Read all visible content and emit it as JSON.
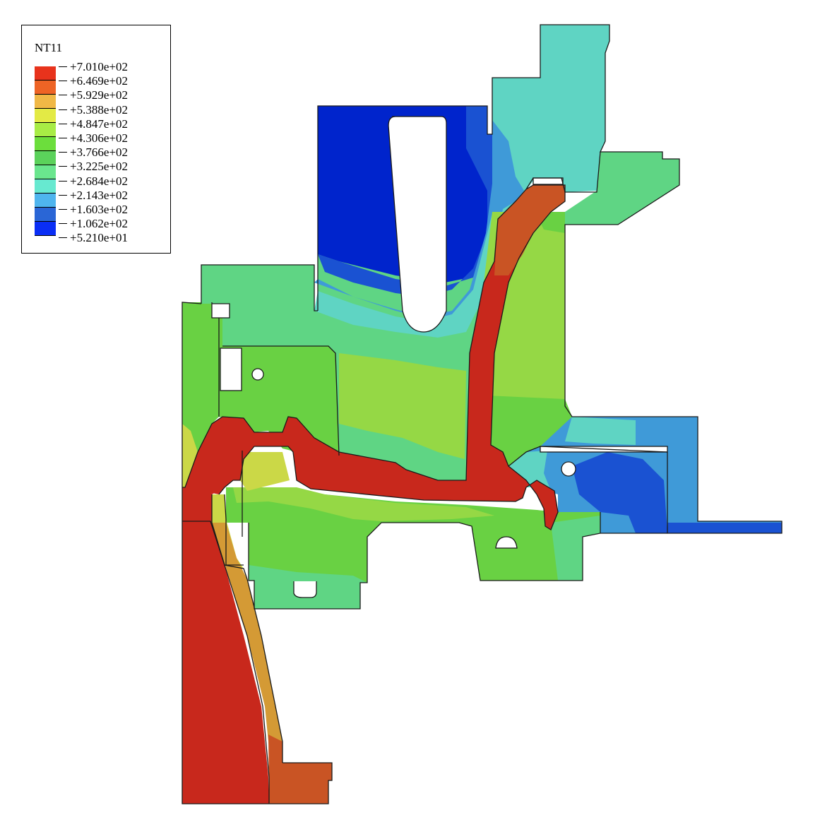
{
  "legend": {
    "title": "NT11",
    "labels": [
      "+7.010e+02",
      "+6.469e+02",
      "+5.929e+02",
      "+5.388e+02",
      "+4.847e+02",
      "+4.306e+02",
      "+3.766e+02",
      "+3.225e+02",
      "+2.684e+02",
      "+2.143e+02",
      "+1.603e+02",
      "+1.062e+02",
      "+5.210e+01"
    ],
    "colors": [
      "#e8331c",
      "#ee6425",
      "#f0b846",
      "#e3ea45",
      "#a8ec45",
      "#6cde3c",
      "#5bd25b",
      "#6ae68e",
      "#67e9d0",
      "#4fb5ee",
      "#2a66d6",
      "#0a2ef5"
    ]
  },
  "contour_colors": {
    "hot": "#c8281c",
    "warm": "#c95424",
    "orange": "#d49a35",
    "yellow": "#cbd847",
    "lime": "#95d845",
    "green": "#69d143",
    "green2": "#5fd05d",
    "mint": "#5fd584",
    "teal": "#5fd4c3",
    "sky": "#3f9ad8",
    "blue": "#1a52d2",
    "navy": "#0024cc"
  }
}
